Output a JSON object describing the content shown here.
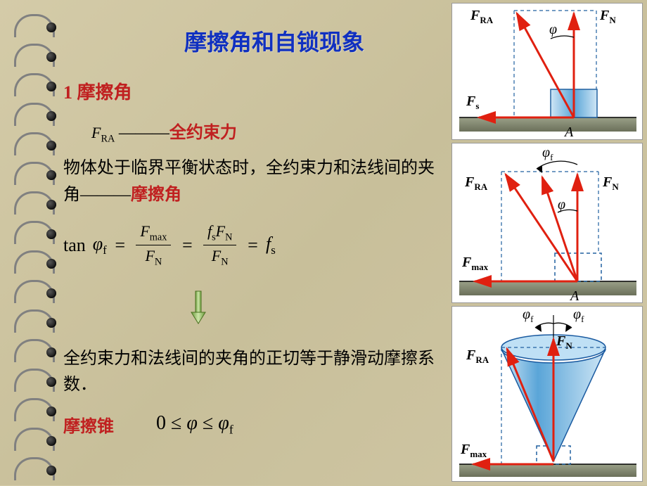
{
  "title": "摩擦角和自锁现象",
  "section1": "1 摩擦角",
  "fra_symbol": "F",
  "fra_sub": "RA",
  "fra_dash": " ———",
  "fra_desc": "全约束力",
  "para1_a": "物体处于临界平衡状态时，全约束力和法线间的夹角———",
  "para1_b": "摩擦角",
  "eq_tan": "tan ",
  "eq_phi": "φ",
  "eq_phi_sub": "f",
  "eq_eq": " = ",
  "frac1_num_F": "F",
  "frac1_num_sub": "max",
  "frac1_den_F": "F",
  "frac1_den_sub": "N",
  "frac2_num_f": "f",
  "frac2_num_fsub": "s",
  "frac2_num_F": "F",
  "frac2_num_Fsub": "N",
  "frac2_den_F": "F",
  "frac2_den_sub": "N",
  "eq_fs": "f",
  "eq_fs_sub": "s",
  "para2": "全约束力和法线间的夹角的正切等于静滑动摩擦系数．",
  "cone": "摩擦锥",
  "ineq_0": "0 ",
  "ineq_le1": "≤ ",
  "ineq_phi": "φ ",
  "ineq_le2": "≤ ",
  "ineq_phif": "φ",
  "ineq_phif_sub": "f",
  "labels": {
    "FRA": "F",
    "FRA_sub": "RA",
    "FN": "F",
    "FN_sub": "N",
    "Fs": "F",
    "Fs_sub": "s",
    "Fmax": "F",
    "Fmax_sub": "max",
    "phi": "φ",
    "phif": "φ",
    "phif_sub": "f",
    "A": "A"
  },
  "colors": {
    "arrow": "#e02010",
    "block_fill": "#7ab8e8",
    "block_stroke": "#2060a0",
    "ground1": "#9aa088",
    "ground2": "#6b705a",
    "dash": "#2060a0",
    "cone_fill": "#8cc5ed",
    "cone_stroke": "#1a5aa0"
  },
  "rings": [
    20,
    62,
    104,
    146,
    188,
    230,
    272,
    314,
    356,
    398,
    440,
    482,
    524,
    566,
    608,
    650
  ]
}
